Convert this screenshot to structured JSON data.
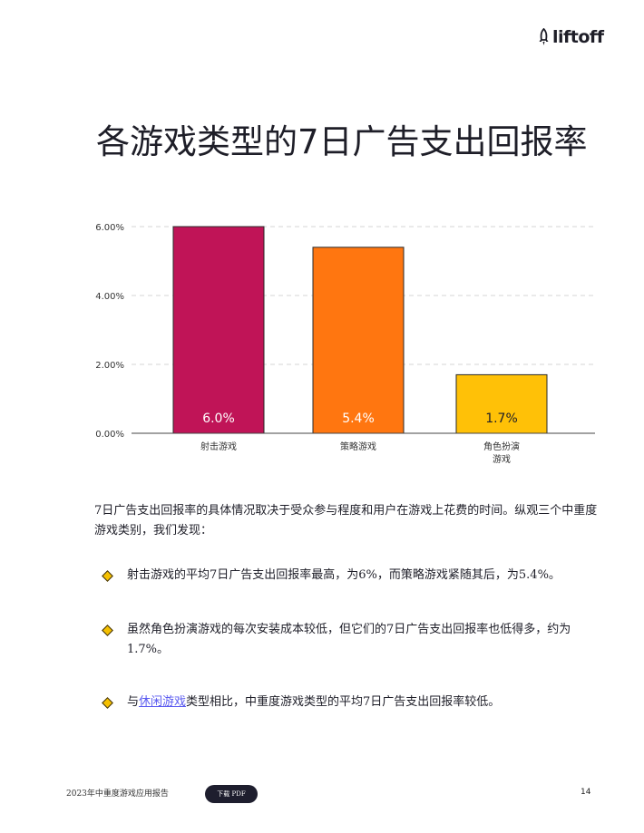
{
  "brand": {
    "name": "liftoff",
    "icon": "rocket-icon"
  },
  "title": "各游戏类型的7日广告支出回报率",
  "chart_data": {
    "type": "bar",
    "categories": [
      "射击游戏",
      "策略游戏",
      "角色扮演\n游戏"
    ],
    "values": [
      6.0,
      5.4,
      1.7
    ],
    "data_labels": [
      "6.0%",
      "5.4%",
      "1.7%"
    ],
    "colors": [
      "#c01457",
      "#ff7610",
      "#ffc107"
    ],
    "yticks": [
      "0.00%",
      "2.00%",
      "4.00%",
      "6.00%"
    ],
    "ylim": [
      0,
      6
    ],
    "grid": true,
    "legend": "none"
  },
  "intro": "7日广告支出回报率的具体情况取决于受众参与程度和用户在游戏上花费的时间。纵观三个中重度游戏类别，我们发现：",
  "bullets": [
    {
      "text": "射击游戏的平均7日广告支出回报率最高，为6%，而策略游戏紧随其后，为5.4%。"
    },
    {
      "text": "虽然角色扮演游戏的每次安装成本较低，但它们的7日广告支出回报率也低得多，约为1.7%。"
    },
    {
      "prefix": "与",
      "link": "休闲游戏",
      "suffix": "类型相比，中重度游戏类型的平均7日广告支出回报率较低。"
    }
  ],
  "footer": {
    "report": "2023年中重度游戏应用报告",
    "button": "下载 PDF",
    "page": "14"
  }
}
